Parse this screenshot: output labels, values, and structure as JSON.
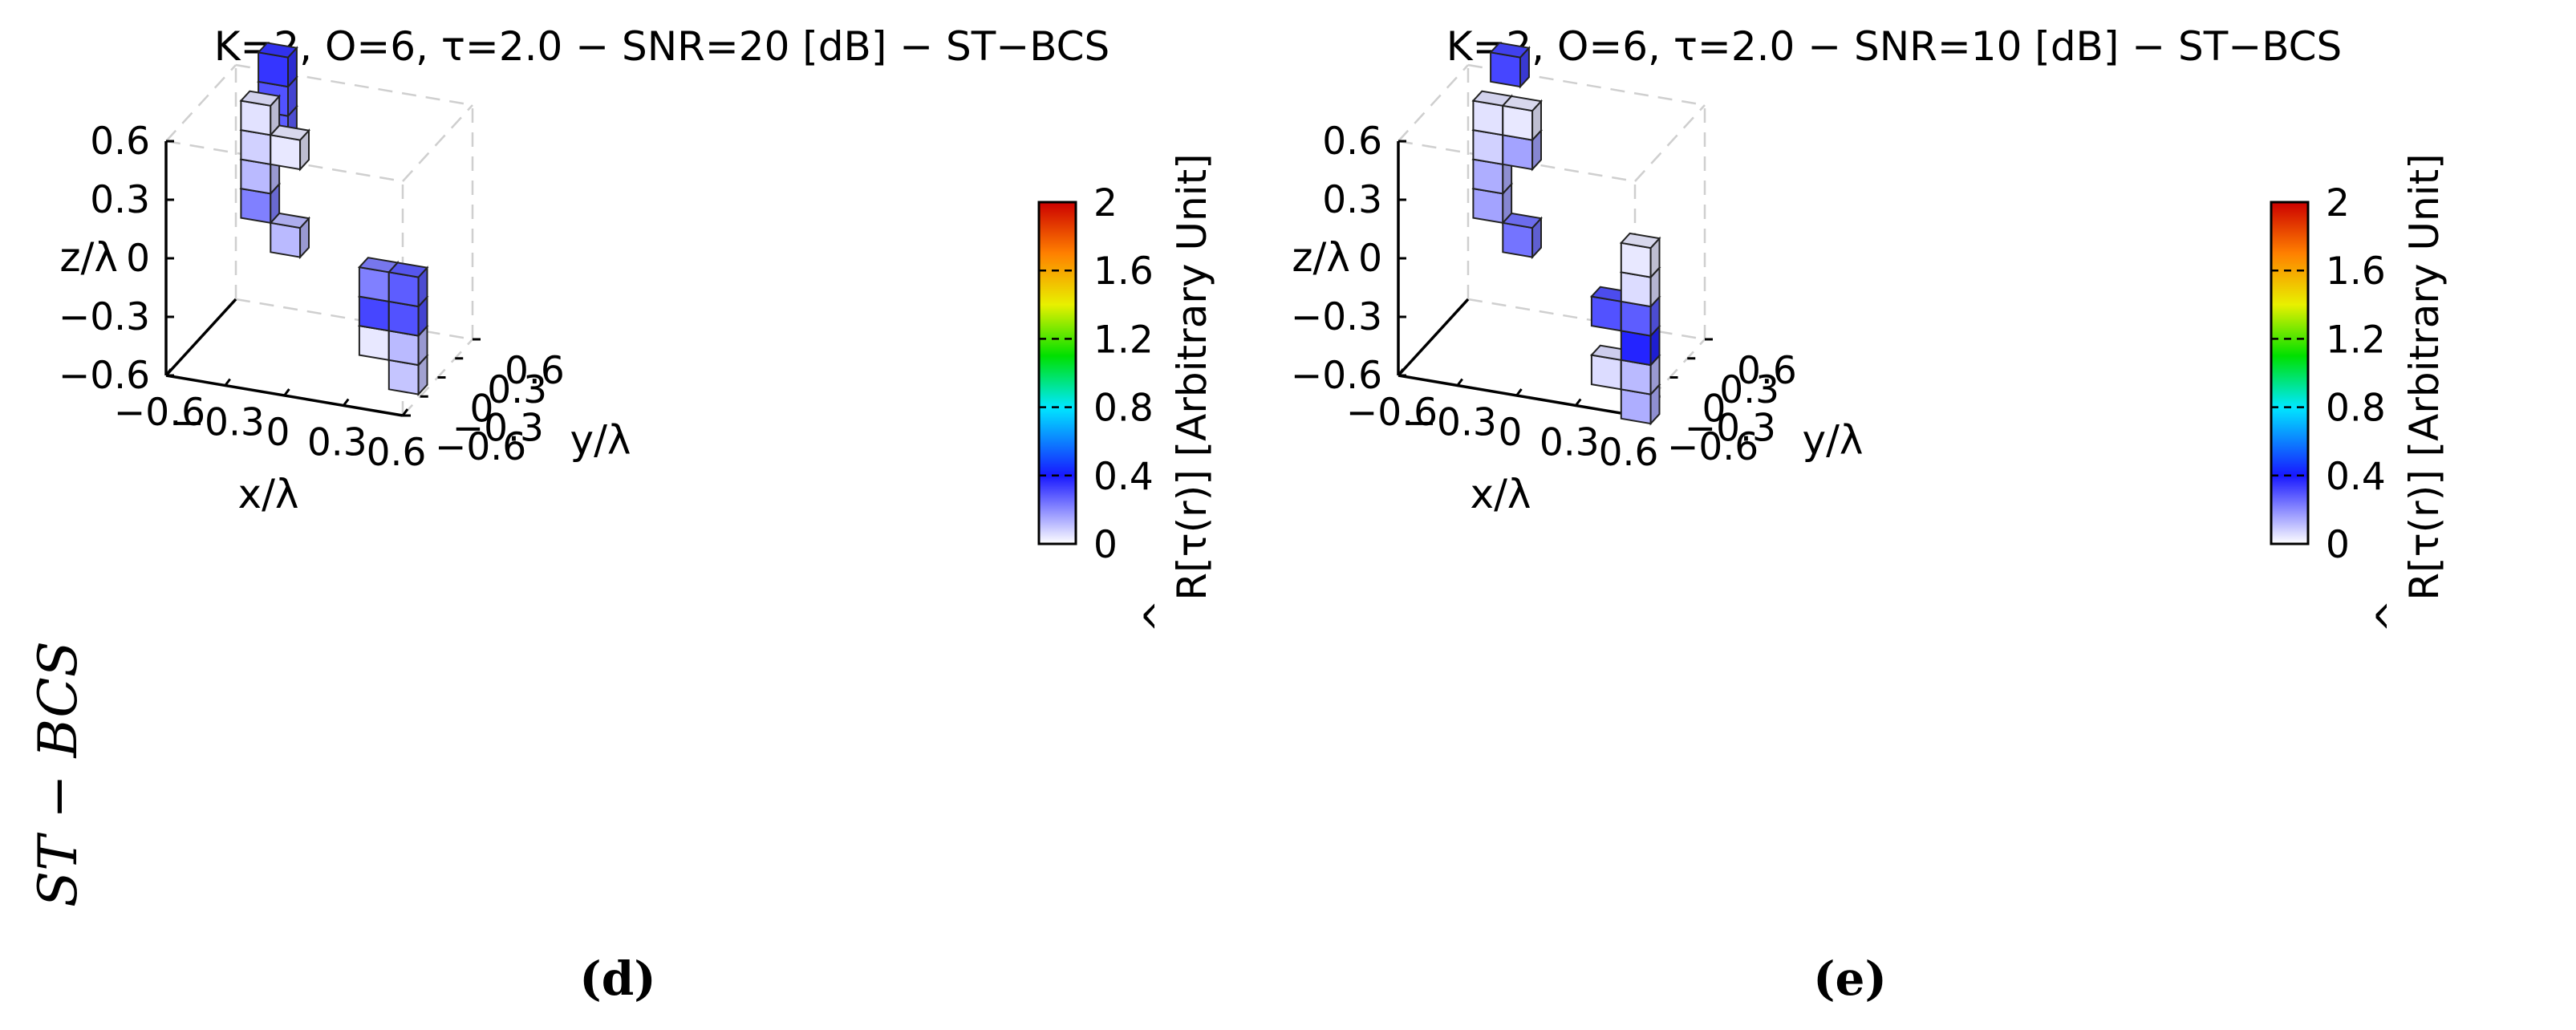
{
  "figure": {
    "row_label": "ST − BCS"
  },
  "chart_data": [
    {
      "type": "3d-voxel",
      "panel_label": "(d)",
      "title": "K=2, O=6, τ=2.0 − SNR=20 [dB] − ST−BCS",
      "xlabel": "x/λ",
      "ylabel": "y/λ",
      "zlabel": "z/λ",
      "xlim": [
        -0.6,
        0.6
      ],
      "ylim": [
        -0.6,
        0.6
      ],
      "zlim": [
        -0.6,
        0.6
      ],
      "x_ticks": [
        "−0.6",
        "−0.3",
        "0",
        "0.3",
        "0.6"
      ],
      "y_ticks": [
        "−0.6",
        "−0.3",
        "0",
        "0.3",
        "0.6"
      ],
      "z_ticks": [
        "−0.6",
        "−0.3",
        "0",
        "0.3",
        "0.6"
      ],
      "colorbar": {
        "label": "R[τ(r)] [Arbitrary Unit]",
        "label_hat": "^",
        "range": [
          0,
          2
        ],
        "ticks": [
          "0",
          "0.4",
          "0.8",
          "1.2",
          "1.6",
          "2"
        ]
      },
      "voxels": [
        {
          "x": -0.3,
          "y": 0.3,
          "z": 0.6,
          "value": 0.3
        },
        {
          "x": -0.3,
          "y": 0.3,
          "z": 0.75,
          "value": 0.35
        },
        {
          "x": -0.3,
          "y": 0.3,
          "z": 0.45,
          "value": 0.28
        },
        {
          "x": -0.3,
          "y": 0.0,
          "z": 0.6,
          "value": 0.05
        },
        {
          "x": -0.3,
          "y": 0.0,
          "z": 0.45,
          "value": 0.08
        },
        {
          "x": -0.3,
          "y": 0.0,
          "z": 0.3,
          "value": 0.12
        },
        {
          "x": -0.3,
          "y": 0.0,
          "z": 0.15,
          "value": 0.22
        },
        {
          "x": -0.15,
          "y": 0.0,
          "z": 0.45,
          "value": 0.04
        },
        {
          "x": -0.15,
          "y": 0.0,
          "z": 0.0,
          "value": 0.12
        },
        {
          "x": 0.3,
          "y": 0.0,
          "z": -0.15,
          "value": 0.22
        },
        {
          "x": 0.45,
          "y": 0.0,
          "z": -0.15,
          "value": 0.28
        },
        {
          "x": 0.3,
          "y": 0.0,
          "z": -0.3,
          "value": 0.32
        },
        {
          "x": 0.45,
          "y": 0.0,
          "z": -0.3,
          "value": 0.3
        },
        {
          "x": 0.3,
          "y": 0.0,
          "z": -0.45,
          "value": 0.04
        },
        {
          "x": 0.45,
          "y": 0.0,
          "z": -0.45,
          "value": 0.12
        },
        {
          "x": 0.45,
          "y": 0.0,
          "z": -0.6,
          "value": 0.1
        }
      ]
    },
    {
      "type": "3d-voxel",
      "panel_label": "(e)",
      "title": "K=2, O=6, τ=2.0 − SNR=10 [dB] − ST−BCS",
      "xlabel": "x/λ",
      "ylabel": "y/λ",
      "zlabel": "z/λ",
      "xlim": [
        -0.6,
        0.6
      ],
      "ylim": [
        -0.6,
        0.6
      ],
      "zlim": [
        -0.6,
        0.6
      ],
      "x_ticks": [
        "−0.6",
        "−0.3",
        "0",
        "0.3",
        "0.6"
      ],
      "y_ticks": [
        "−0.6",
        "−0.3",
        "0",
        "0.3",
        "0.6"
      ],
      "z_ticks": [
        "−0.6",
        "−0.3",
        "0",
        "0.3",
        "0.6"
      ],
      "colorbar": {
        "label": "R[τ(r)] [Arbitrary Unit]",
        "label_hat": "^",
        "range": [
          0,
          2
        ],
        "ticks": [
          "0",
          "0.4",
          "0.8",
          "1.2",
          "1.6",
          "2"
        ]
      },
      "voxels": [
        {
          "x": -0.3,
          "y": 0.3,
          "z": 0.75,
          "value": 0.32
        },
        {
          "x": -0.3,
          "y": 0.0,
          "z": 0.6,
          "value": 0.05
        },
        {
          "x": -0.3,
          "y": 0.0,
          "z": 0.45,
          "value": 0.08
        },
        {
          "x": -0.3,
          "y": 0.0,
          "z": 0.3,
          "value": 0.14
        },
        {
          "x": -0.3,
          "y": 0.0,
          "z": 0.15,
          "value": 0.16
        },
        {
          "x": -0.15,
          "y": 0.0,
          "z": 0.6,
          "value": 0.04
        },
        {
          "x": -0.15,
          "y": 0.0,
          "z": 0.45,
          "value": 0.16
        },
        {
          "x": -0.15,
          "y": 0.0,
          "z": 0.0,
          "value": 0.24
        },
        {
          "x": 0.45,
          "y": 0.0,
          "z": 0.0,
          "value": 0.04
        },
        {
          "x": 0.45,
          "y": 0.0,
          "z": -0.15,
          "value": 0.06
        },
        {
          "x": 0.3,
          "y": 0.0,
          "z": -0.3,
          "value": 0.3
        },
        {
          "x": 0.45,
          "y": 0.0,
          "z": -0.3,
          "value": 0.28
        },
        {
          "x": 0.45,
          "y": 0.0,
          "z": -0.45,
          "value": 0.38
        },
        {
          "x": 0.3,
          "y": 0.0,
          "z": -0.6,
          "value": 0.06
        },
        {
          "x": 0.45,
          "y": 0.0,
          "z": -0.6,
          "value": 0.12
        },
        {
          "x": 0.45,
          "y": 0.0,
          "z": -0.75,
          "value": 0.14
        }
      ]
    }
  ]
}
